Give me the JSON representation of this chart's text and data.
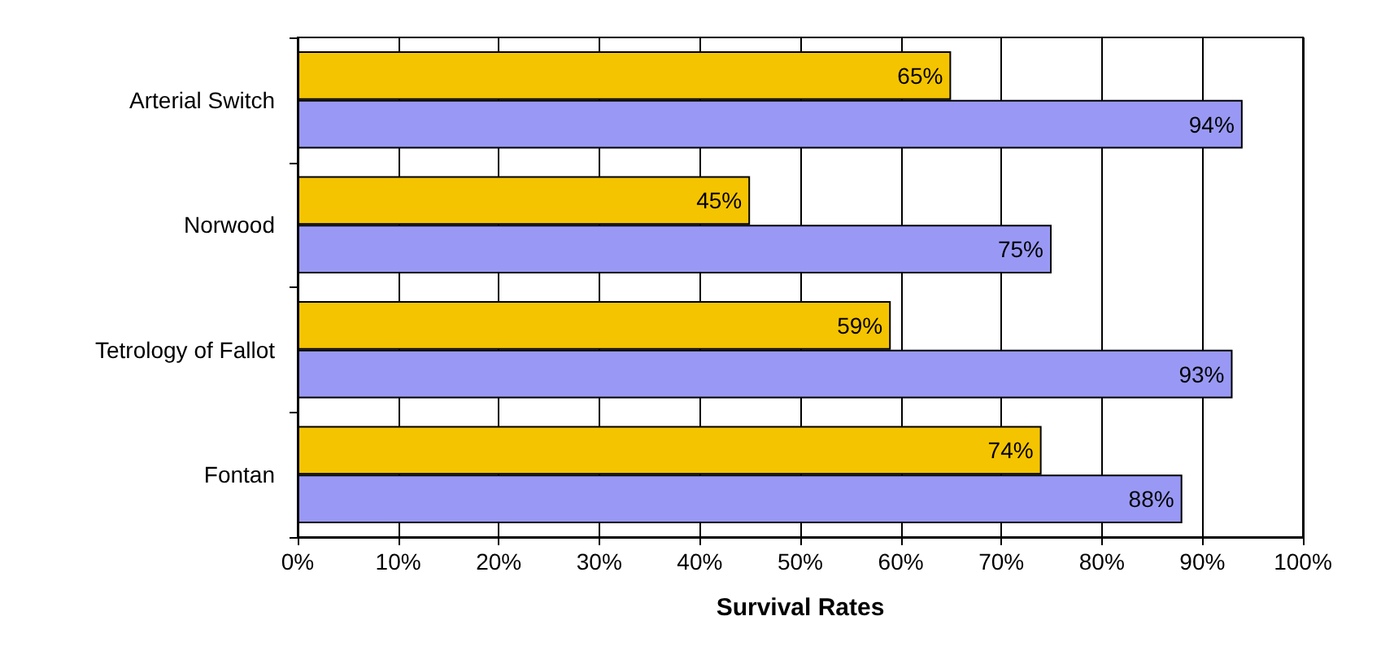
{
  "chart_data": {
    "type": "bar",
    "orientation": "horizontal",
    "xlabel": "Survival Rates",
    "categories": [
      "Arterial Switch",
      "Norwood",
      "Tetrology of Fallot",
      "Fontan"
    ],
    "series": [
      {
        "color": "#f5c400",
        "values": [
          65,
          45,
          59,
          74
        ],
        "value_labels": [
          "65%",
          "45%",
          "59%",
          "74%"
        ]
      },
      {
        "color": "#9999f5",
        "values": [
          94,
          75,
          93,
          88
        ],
        "value_labels": [
          "94%",
          "75%",
          "93%",
          "88%"
        ]
      }
    ],
    "xlim": [
      0,
      100
    ],
    "xticks": [
      {
        "value": 0,
        "label": "0%"
      },
      {
        "value": 10,
        "label": "10%"
      },
      {
        "value": 20,
        "label": "20%"
      },
      {
        "value": 30,
        "label": "30%"
      },
      {
        "value": 40,
        "label": "40%"
      },
      {
        "value": 50,
        "label": "50%"
      },
      {
        "value": 60,
        "label": "60%"
      },
      {
        "value": 70,
        "label": "70%"
      },
      {
        "value": 80,
        "label": "80%"
      },
      {
        "value": 90,
        "label": "90%"
      },
      {
        "value": 100,
        "label": "100%"
      }
    ],
    "grid": "x"
  }
}
